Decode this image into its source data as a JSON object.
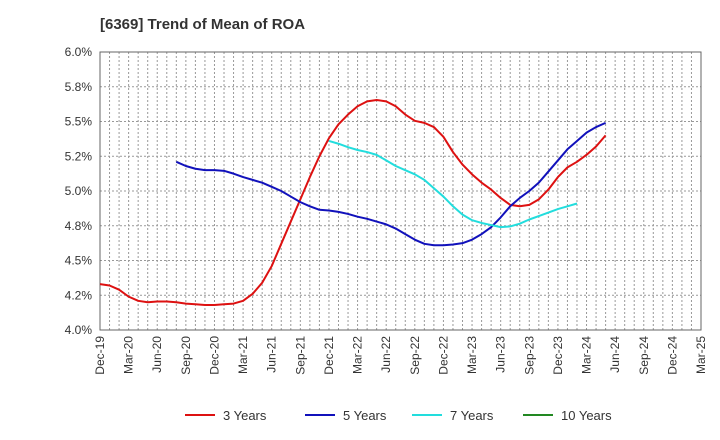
{
  "chart_data": {
    "type": "line",
    "title": "[6369]  Trend of Mean of ROA",
    "xlabel": "",
    "ylabel": "",
    "ylim": [
      4.0,
      6.0
    ],
    "y_ticks": [
      "4.0%",
      "4.2%",
      "4.5%",
      "4.8%",
      "5.0%",
      "5.2%",
      "5.5%",
      "5.8%",
      "6.0%"
    ],
    "x_ticks": [
      "Dec-19",
      "Mar-20",
      "Jun-20",
      "Sep-20",
      "Dec-20",
      "Mar-21",
      "Jun-21",
      "Sep-21",
      "Dec-21",
      "Mar-22",
      "Jun-22",
      "Sep-22",
      "Dec-22",
      "Mar-23",
      "Jun-23",
      "Sep-23",
      "Dec-23",
      "Mar-24",
      "Jun-24",
      "Sep-24",
      "Dec-24",
      "Mar-25"
    ],
    "grid": true,
    "legend_position": "bottom",
    "series": [
      {
        "name": "3 Years",
        "color": "#dd1111",
        "start_index": 0,
        "values": [
          4.33,
          4.32,
          4.29,
          4.24,
          4.21,
          4.2,
          4.205,
          4.205,
          4.2,
          4.19,
          4.185,
          4.18,
          4.18,
          4.185,
          4.19,
          4.21,
          4.26,
          4.34,
          4.46,
          4.62,
          4.78,
          4.94,
          5.1,
          5.25,
          5.38,
          5.48,
          5.55,
          5.61,
          5.645,
          5.655,
          5.645,
          5.61,
          5.55,
          5.505,
          5.49,
          5.46,
          5.39,
          5.28,
          5.19,
          5.12,
          5.06,
          5.01,
          4.95,
          4.9,
          4.89,
          4.9,
          4.94,
          5.01,
          5.1,
          5.17,
          5.21,
          5.26,
          5.32,
          5.4
        ]
      },
      {
        "name": "5 Years",
        "color": "#1111bb",
        "start_index": 8,
        "values": [
          5.21,
          5.18,
          5.16,
          5.15,
          5.15,
          5.145,
          5.125,
          5.1,
          5.08,
          5.06,
          5.03,
          5.0,
          4.96,
          4.92,
          4.89,
          4.865,
          4.86,
          4.85,
          4.835,
          4.815,
          4.8,
          4.78,
          4.76,
          4.73,
          4.69,
          4.65,
          4.62,
          4.61,
          4.61,
          4.615,
          4.625,
          4.65,
          4.69,
          4.74,
          4.81,
          4.89,
          4.95,
          5.0,
          5.06,
          5.14,
          5.22,
          5.3,
          5.36,
          5.42,
          5.46,
          5.49
        ]
      },
      {
        "name": "7 Years",
        "color": "#22dddd",
        "start_index": 24,
        "values": [
          5.36,
          5.34,
          5.315,
          5.295,
          5.28,
          5.26,
          5.22,
          5.18,
          5.15,
          5.12,
          5.08,
          5.02,
          4.96,
          4.89,
          4.83,
          4.79,
          4.77,
          4.755,
          4.74,
          4.745,
          4.765,
          4.795,
          4.82,
          4.845,
          4.87,
          4.89,
          4.91
        ]
      },
      {
        "name": "10 Years",
        "color": "#228822",
        "start_index": 0,
        "values": []
      }
    ]
  }
}
